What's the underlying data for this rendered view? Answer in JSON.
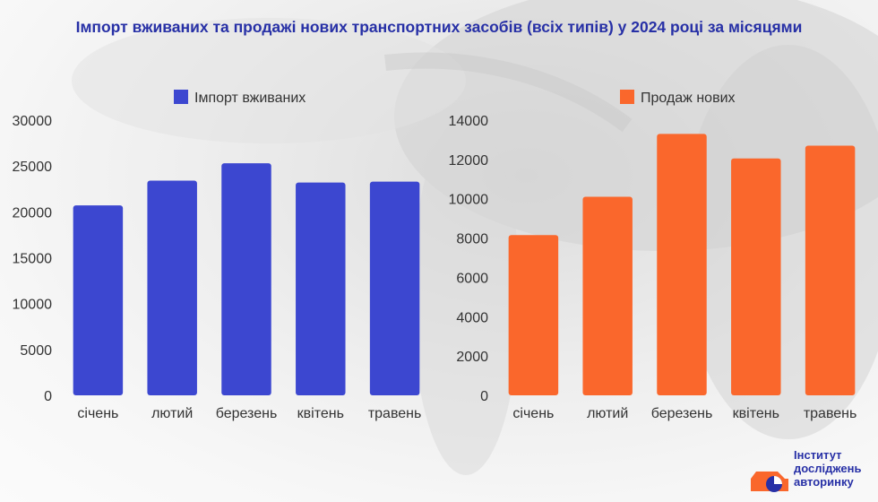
{
  "title": "Імпорт вживаних та продажі нових транспортних засобів (всіх типів) у 2024 році за місяцями",
  "colors": {
    "title": "#2730a6",
    "import": "#3c47d0",
    "sales": "#fa672c",
    "axis_text": "#333333"
  },
  "chart_data": [
    {
      "type": "bar",
      "categories": [
        "січень",
        "лютий",
        "березень",
        "квітень",
        "травень"
      ],
      "series": [
        {
          "name": "Імпорт вживаних",
          "values": [
            20700,
            23400,
            25300,
            23200,
            23300
          ]
        }
      ],
      "ylim": [
        0,
        30000
      ],
      "yticks": [
        0,
        5000,
        10000,
        15000,
        20000,
        25000,
        30000
      ],
      "legend": "top-center",
      "grid": false
    },
    {
      "type": "bar",
      "categories": [
        "січень",
        "лютий",
        "березень",
        "квітень",
        "травень"
      ],
      "series": [
        {
          "name": "Продаж нових",
          "values": [
            8150,
            10100,
            13300,
            12050,
            12700
          ]
        }
      ],
      "ylim": [
        0,
        14000
      ],
      "yticks": [
        0,
        2000,
        4000,
        6000,
        8000,
        10000,
        12000,
        14000
      ],
      "legend": "top-center",
      "grid": false
    }
  ],
  "logo": {
    "line1": "Інститут",
    "line2": "досліджень",
    "line3": "авторинку",
    "icon": "car-pie-logo-icon"
  }
}
